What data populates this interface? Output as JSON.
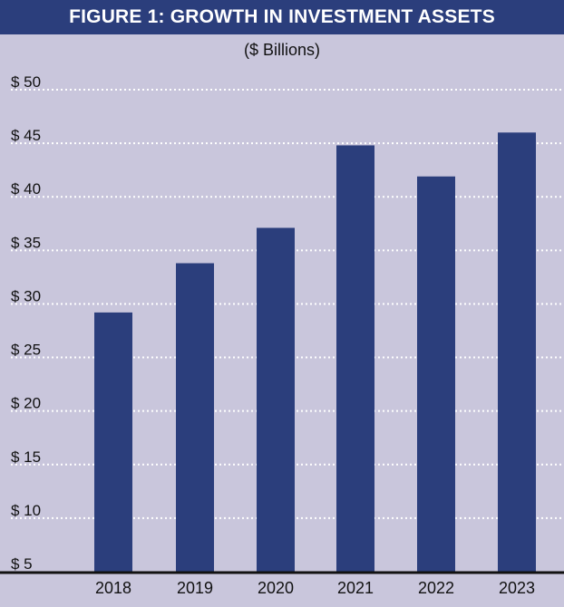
{
  "title": "FIGURE 1: GROWTH IN INVESTMENT ASSETS",
  "subtitle": "($ Billions)",
  "colors": {
    "title_bg": "#2b3e7c",
    "bar": "#2b3e7c",
    "plot_bg": "#c9c6dc"
  },
  "chart_data": {
    "type": "bar",
    "title": "FIGURE 1: GROWTH IN INVESTMENT ASSETS",
    "subtitle": "($ Billions)",
    "xlabel": "",
    "ylabel": "",
    "categories": [
      "2018",
      "2019",
      "2020",
      "2021",
      "2022",
      "2023"
    ],
    "values": [
      29.2,
      33.8,
      37.1,
      44.8,
      41.9,
      46.0
    ],
    "y_ticks": [
      "$ 5",
      "$ 10",
      "$ 15",
      "$ 20",
      "$ 25",
      "$ 30",
      "$ 35",
      "$ 40",
      "$ 45",
      "$ 50"
    ],
    "y_tick_values": [
      5,
      10,
      15,
      20,
      25,
      30,
      35,
      40,
      45,
      50
    ],
    "ylim": [
      5,
      50
    ],
    "grid": "dotted horizontal",
    "legend": "none"
  }
}
